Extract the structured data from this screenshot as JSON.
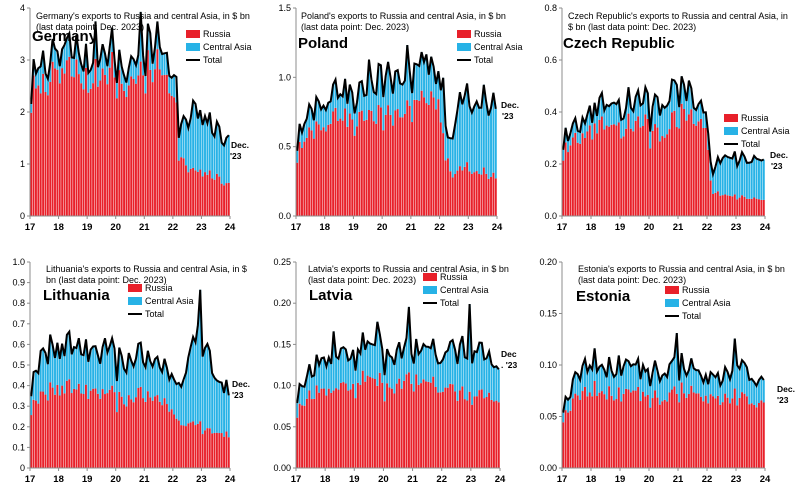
{
  "colors": {
    "russia": "#E8202A",
    "central_asia": "#27B2E6",
    "total": "#000000",
    "axis": "#8C8C8C"
  },
  "chart_data": [
    {
      "type": "bar",
      "stacked": true,
      "country": "Germany",
      "caption": [
        "Germany's exports to Russia and central Asia, in $ bn",
        "(last data point: Dec. 2023)"
      ],
      "legend": [
        "Russia",
        "Central Asia",
        "Total"
      ],
      "legend_position": "top-right",
      "end_label": [
        "Dec.",
        "'23"
      ],
      "ylim": [
        0,
        4
      ],
      "yticks": [
        "0",
        "1",
        "2",
        "3",
        "4"
      ],
      "xticks": [
        "17",
        "18",
        "19",
        "20",
        "21",
        "22",
        "23",
        "24"
      ],
      "x_range": [
        2017,
        2024
      ],
      "anchors": {
        "russia": [
          [
            2017.0,
            2.4
          ],
          [
            2017.5,
            2.5
          ],
          [
            2018.0,
            2.85
          ],
          [
            2018.5,
            2.8
          ],
          [
            2019.0,
            2.6
          ],
          [
            2019.5,
            2.75
          ],
          [
            2019.9,
            2.9
          ],
          [
            2020.3,
            2.4
          ],
          [
            2020.7,
            2.7
          ],
          [
            2021.0,
            2.8
          ],
          [
            2021.5,
            2.9
          ],
          [
            2021.9,
            2.6
          ],
          [
            2022.1,
            2.4
          ],
          [
            2022.2,
            1.2
          ],
          [
            2022.5,
            0.9
          ],
          [
            2023.0,
            0.85
          ],
          [
            2023.5,
            0.75
          ],
          [
            2023.95,
            0.6
          ]
        ],
        "total": [
          [
            2017.0,
            2.6
          ],
          [
            2017.5,
            2.9
          ],
          [
            2018.0,
            3.2
          ],
          [
            2018.5,
            3.2
          ],
          [
            2019.0,
            3.0
          ],
          [
            2019.5,
            3.2
          ],
          [
            2019.9,
            3.3
          ],
          [
            2020.3,
            2.7
          ],
          [
            2020.7,
            3.1
          ],
          [
            2021.0,
            3.2
          ],
          [
            2021.5,
            3.35
          ],
          [
            2021.9,
            3.0
          ],
          [
            2022.1,
            2.85
          ],
          [
            2022.2,
            1.7
          ],
          [
            2022.5,
            1.8
          ],
          [
            2023.0,
            1.95
          ],
          [
            2023.5,
            1.65
          ],
          [
            2023.95,
            1.45
          ]
        ],
        "spikes": [
          [
            2017.35,
            0.2
          ],
          [
            2018.2,
            0.2
          ],
          [
            2019.3,
            0.2
          ],
          [
            2020.9,
            0.5
          ],
          [
            2021.2,
            0.3
          ],
          [
            2022.75,
            0.25
          ]
        ]
      }
    },
    {
      "type": "bar",
      "stacked": true,
      "country": "Poland",
      "caption": [
        "Poland's exports to Russia and central Asia, in $ bn",
        "(last data point: Dec. 2023)"
      ],
      "legend": [
        "Russia",
        "Central Asia",
        "Total"
      ],
      "legend_position": "top-right",
      "end_label": [
        "Dec.",
        "'23"
      ],
      "ylim": [
        0,
        1.5
      ],
      "yticks": [
        "0.0",
        "0.5",
        "1.0",
        "1.5"
      ],
      "xticks": [
        "17",
        "18",
        "19",
        "20",
        "21",
        "22",
        "23",
        "24"
      ],
      "x_range": [
        2017,
        2024
      ],
      "anchors": {
        "russia": [
          [
            2017.0,
            0.45
          ],
          [
            2017.5,
            0.6
          ],
          [
            2018.0,
            0.68
          ],
          [
            2018.5,
            0.72
          ],
          [
            2019.0,
            0.7
          ],
          [
            2019.5,
            0.75
          ],
          [
            2020.0,
            0.72
          ],
          [
            2020.5,
            0.7
          ],
          [
            2021.0,
            0.8
          ],
          [
            2021.5,
            0.85
          ],
          [
            2022.0,
            0.85
          ],
          [
            2022.15,
            0.5
          ],
          [
            2022.4,
            0.3
          ],
          [
            2023.0,
            0.35
          ],
          [
            2023.5,
            0.32
          ],
          [
            2023.95,
            0.28
          ]
        ],
        "total": [
          [
            2017.0,
            0.55
          ],
          [
            2017.5,
            0.75
          ],
          [
            2018.0,
            0.85
          ],
          [
            2018.5,
            0.9
          ],
          [
            2019.0,
            0.9
          ],
          [
            2019.5,
            0.95
          ],
          [
            2020.0,
            1.0
          ],
          [
            2020.5,
            0.95
          ],
          [
            2021.0,
            1.05
          ],
          [
            2021.5,
            1.1
          ],
          [
            2022.0,
            1.05
          ],
          [
            2022.15,
            0.9
          ],
          [
            2022.3,
            0.5
          ],
          [
            2022.7,
            0.8
          ],
          [
            2023.0,
            0.85
          ],
          [
            2023.5,
            0.85
          ],
          [
            2023.95,
            0.8
          ]
        ],
        "spikes": [
          [
            2019.55,
            0.15
          ],
          [
            2020.9,
            0.12
          ],
          [
            2021.55,
            0.12
          ]
        ]
      }
    },
    {
      "type": "bar",
      "stacked": true,
      "country": "Czech Republic",
      "caption": [
        "Czech Republic's exports to Russia and central Asia, in",
        "$ bn (last data point: Dec. 2023)"
      ],
      "legend": [
        "Russia",
        "Central Asia",
        "Total"
      ],
      "legend_position": "top-right",
      "end_label": [
        "Dec.",
        "'23"
      ],
      "ylim": [
        0,
        0.8
      ],
      "yticks": [
        "0.0",
        "0.2",
        "0.4",
        "0.6",
        "0.8"
      ],
      "xticks": [
        "17",
        "18",
        "19",
        "20",
        "21",
        "22",
        "23",
        "24"
      ],
      "x_range": [
        2017,
        2024
      ],
      "anchors": {
        "russia": [
          [
            2017.0,
            0.25
          ],
          [
            2017.5,
            0.3
          ],
          [
            2018.0,
            0.33
          ],
          [
            2018.5,
            0.35
          ],
          [
            2019.0,
            0.34
          ],
          [
            2019.5,
            0.36
          ],
          [
            2020.0,
            0.35
          ],
          [
            2020.5,
            0.3
          ],
          [
            2021.0,
            0.4
          ],
          [
            2021.5,
            0.38
          ],
          [
            2022.0,
            0.37
          ],
          [
            2022.15,
            0.1
          ],
          [
            2022.5,
            0.08
          ],
          [
            2023.0,
            0.08
          ],
          [
            2023.5,
            0.07
          ],
          [
            2023.95,
            0.06
          ]
        ],
        "total": [
          [
            2017.0,
            0.3
          ],
          [
            2017.5,
            0.35
          ],
          [
            2018.0,
            0.4
          ],
          [
            2018.5,
            0.43
          ],
          [
            2019.0,
            0.42
          ],
          [
            2019.5,
            0.45
          ],
          [
            2020.0,
            0.44
          ],
          [
            2020.5,
            0.42
          ],
          [
            2021.0,
            0.5
          ],
          [
            2021.5,
            0.45
          ],
          [
            2022.0,
            0.44
          ],
          [
            2022.15,
            0.18
          ],
          [
            2022.5,
            0.22
          ],
          [
            2023.0,
            0.24
          ],
          [
            2023.5,
            0.22
          ],
          [
            2023.95,
            0.21
          ]
        ],
        "spikes": [
          [
            2020.95,
            0.08
          ],
          [
            2021.4,
            0.05
          ]
        ]
      }
    },
    {
      "type": "bar",
      "stacked": true,
      "country": "Lithuania",
      "caption": [
        "Lithuania's exports to Russia and central Asia, in $",
        "bn (last data point: Dec. 2023)"
      ],
      "legend": [
        "Russia",
        "Central Asia",
        "Total"
      ],
      "legend_position": "top-left",
      "end_label": [
        "Dec.",
        "'23"
      ],
      "ylim": [
        0,
        1.0
      ],
      "yticks": [
        "0",
        "0.1",
        "0.2",
        "0.3",
        "0.4",
        "0.5",
        "0.6",
        "0.7",
        "0.8",
        "0.9",
        "1.0"
      ],
      "xticks": [
        "17",
        "18",
        "19",
        "20",
        "21",
        "22",
        "23",
        "24"
      ],
      "x_range": [
        2017,
        2024
      ],
      "anchors": {
        "russia": [
          [
            2017.0,
            0.3
          ],
          [
            2017.5,
            0.35
          ],
          [
            2018.0,
            0.4
          ],
          [
            2018.5,
            0.38
          ],
          [
            2019.0,
            0.36
          ],
          [
            2019.5,
            0.38
          ],
          [
            2020.0,
            0.35
          ],
          [
            2020.5,
            0.32
          ],
          [
            2021.0,
            0.38
          ],
          [
            2021.5,
            0.36
          ],
          [
            2022.0,
            0.28
          ],
          [
            2022.3,
            0.2
          ],
          [
            2022.8,
            0.22
          ],
          [
            2023.0,
            0.2
          ],
          [
            2023.5,
            0.18
          ],
          [
            2023.95,
            0.16
          ]
        ],
        "total": [
          [
            2017.0,
            0.4
          ],
          [
            2017.5,
            0.55
          ],
          [
            2018.0,
            0.6
          ],
          [
            2018.5,
            0.58
          ],
          [
            2019.0,
            0.55
          ],
          [
            2019.5,
            0.58
          ],
          [
            2020.0,
            0.55
          ],
          [
            2020.5,
            0.5
          ],
          [
            2021.0,
            0.58
          ],
          [
            2021.5,
            0.55
          ],
          [
            2022.0,
            0.45
          ],
          [
            2022.3,
            0.38
          ],
          [
            2022.6,
            0.55
          ],
          [
            2022.9,
            0.7
          ],
          [
            2023.2,
            0.6
          ],
          [
            2023.5,
            0.45
          ],
          [
            2023.95,
            0.38
          ]
        ],
        "spikes": [
          [
            2019.6,
            0.08
          ],
          [
            2022.95,
            0.1
          ]
        ]
      }
    },
    {
      "type": "bar",
      "stacked": true,
      "country": "Latvia",
      "caption": [
        "Latvia's exports to Russia and central Asia, in $ bn",
        "(last data point: Dec. 2023)"
      ],
      "legend": [
        "Russia",
        "Central Asia",
        "Total"
      ],
      "legend_position": "top-right",
      "end_label": [
        "Dec",
        ". '23"
      ],
      "ylim": [
        0,
        0.25
      ],
      "yticks": [
        "0.00",
        "0.05",
        "0.10",
        "0.15",
        "0.20",
        "0.25"
      ],
      "xticks": [
        "17",
        "18",
        "19",
        "20",
        "21",
        "22",
        "23",
        "24"
      ],
      "x_range": [
        2017,
        2024
      ],
      "anchors": {
        "russia": [
          [
            2017.0,
            0.07
          ],
          [
            2017.5,
            0.09
          ],
          [
            2018.0,
            0.1
          ],
          [
            2018.5,
            0.1
          ],
          [
            2019.0,
            0.1
          ],
          [
            2019.5,
            0.11
          ],
          [
            2020.0,
            0.1
          ],
          [
            2020.5,
            0.1
          ],
          [
            2021.0,
            0.11
          ],
          [
            2021.5,
            0.1
          ],
          [
            2022.0,
            0.1
          ],
          [
            2022.5,
            0.09
          ],
          [
            2023.0,
            0.09
          ],
          [
            2023.5,
            0.09
          ],
          [
            2023.95,
            0.08
          ]
        ],
        "total": [
          [
            2017.0,
            0.09
          ],
          [
            2017.5,
            0.12
          ],
          [
            2018.0,
            0.14
          ],
          [
            2018.5,
            0.14
          ],
          [
            2019.0,
            0.14
          ],
          [
            2019.5,
            0.15
          ],
          [
            2020.0,
            0.14
          ],
          [
            2020.5,
            0.14
          ],
          [
            2021.0,
            0.15
          ],
          [
            2021.5,
            0.14
          ],
          [
            2022.0,
            0.14
          ],
          [
            2022.5,
            0.14
          ],
          [
            2023.0,
            0.15
          ],
          [
            2023.5,
            0.14
          ],
          [
            2023.95,
            0.12
          ]
        ],
        "spikes": [
          [
            2018.3,
            0.035
          ],
          [
            2019.8,
            0.04
          ],
          [
            2020.9,
            0.035
          ],
          [
            2022.95,
            0.045
          ]
        ]
      }
    },
    {
      "type": "bar",
      "stacked": true,
      "country": "Estonia",
      "caption": [
        "Estonia's exports to Russia and central Asia, in $ bn",
        "(last data point: Dec. 2023)"
      ],
      "legend": [
        "Russia",
        "Central Asia",
        "Total"
      ],
      "legend_position": "top-right",
      "end_label": [
        "Dec.",
        "'23"
      ],
      "ylim": [
        0,
        0.2
      ],
      "yticks": [
        "0.00",
        "0.05",
        "0.10",
        "0.15",
        "0.20"
      ],
      "xticks": [
        "17",
        "18",
        "19",
        "20",
        "21",
        "22",
        "23",
        "24"
      ],
      "x_range": [
        2017,
        2024
      ],
      "anchors": {
        "russia": [
          [
            2017.0,
            0.05
          ],
          [
            2017.5,
            0.07
          ],
          [
            2018.0,
            0.08
          ],
          [
            2018.5,
            0.075
          ],
          [
            2019.0,
            0.072
          ],
          [
            2019.5,
            0.075
          ],
          [
            2020.0,
            0.07
          ],
          [
            2020.5,
            0.068
          ],
          [
            2021.0,
            0.075
          ],
          [
            2021.5,
            0.072
          ],
          [
            2022.0,
            0.07
          ],
          [
            2022.5,
            0.068
          ],
          [
            2023.0,
            0.07
          ],
          [
            2023.5,
            0.065
          ],
          [
            2023.95,
            0.06
          ]
        ],
        "total": [
          [
            2017.0,
            0.06
          ],
          [
            2017.5,
            0.09
          ],
          [
            2018.0,
            0.11
          ],
          [
            2018.5,
            0.1
          ],
          [
            2019.0,
            0.1
          ],
          [
            2019.5,
            0.1
          ],
          [
            2020.0,
            0.095
          ],
          [
            2020.5,
            0.095
          ],
          [
            2021.0,
            0.1
          ],
          [
            2021.5,
            0.095
          ],
          [
            2022.0,
            0.09
          ],
          [
            2022.5,
            0.09
          ],
          [
            2023.0,
            0.1
          ],
          [
            2023.5,
            0.09
          ],
          [
            2023.95,
            0.08
          ]
        ],
        "spikes": [
          [
            2020.95,
            0.035
          ],
          [
            2023.0,
            0.015
          ]
        ]
      }
    }
  ]
}
